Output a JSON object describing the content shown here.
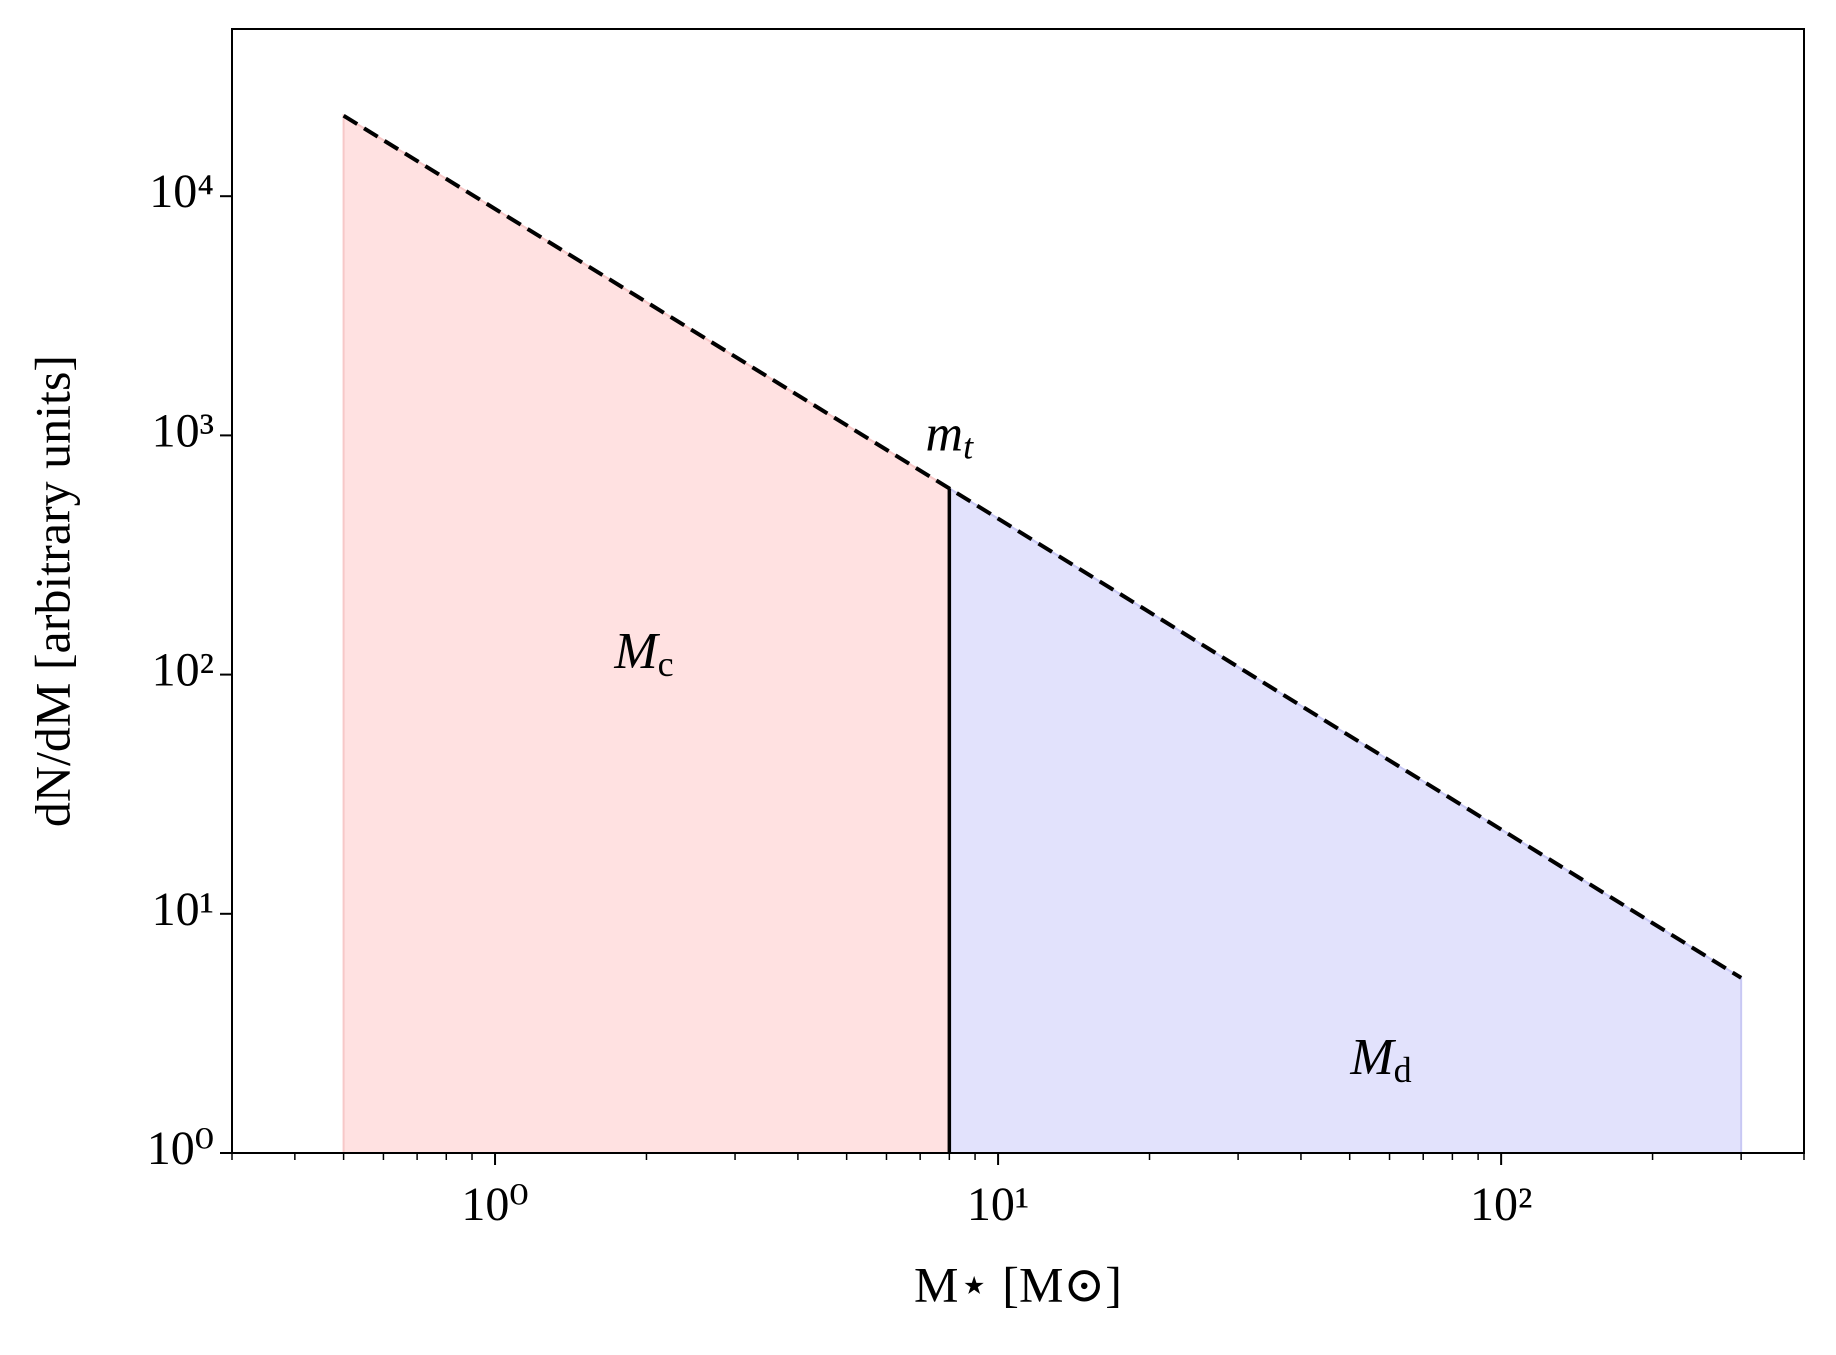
{
  "chart_data": {
    "type": "line",
    "xlabel": "M⋆ [M⊙]",
    "ylabel": "dN/dM [arbitrary units]",
    "xscale": "log",
    "yscale": "log",
    "xlim": [
      0.3,
      400
    ],
    "ylim": [
      1,
      50000
    ],
    "xticks": [
      {
        "value": 1,
        "label": "10⁰"
      },
      {
        "value": 10,
        "label": "10¹"
      },
      {
        "value": 100,
        "label": "10²"
      }
    ],
    "xminorticks": [
      0.3,
      0.4,
      0.5,
      0.6,
      0.7,
      0.8,
      0.9,
      2,
      3,
      4,
      5,
      6,
      7,
      8,
      9,
      20,
      30,
      40,
      50,
      60,
      70,
      80,
      90,
      200,
      300,
      400
    ],
    "yticks": [
      {
        "value": 1,
        "label": "10⁰"
      },
      {
        "value": 10,
        "label": "10¹"
      },
      {
        "value": 100,
        "label": "10²"
      },
      {
        "value": 1000,
        "label": "10³"
      },
      {
        "value": 10000,
        "label": "10⁴"
      }
    ],
    "line": {
      "x": [
        0.5,
        8,
        300
      ],
      "values": [
        21700,
        600,
        5.4
      ],
      "color": "#000000",
      "style": "dashed"
    },
    "areas": [
      {
        "label": "M",
        "label_sub": "c",
        "x": [
          0.5,
          8
        ],
        "values": [
          21700,
          600
        ],
        "color": "#ffe1e1",
        "edge": "#f7c8c8"
      },
      {
        "label": "M",
        "label_sub": "d",
        "x": [
          8,
          300
        ],
        "values": [
          600,
          5.4
        ],
        "color": "#e2e2fc",
        "edge": "#c8c8f4"
      }
    ],
    "threshold": {
      "label": "m",
      "label_sub": "t",
      "x": 8,
      "color": "#000000"
    }
  }
}
